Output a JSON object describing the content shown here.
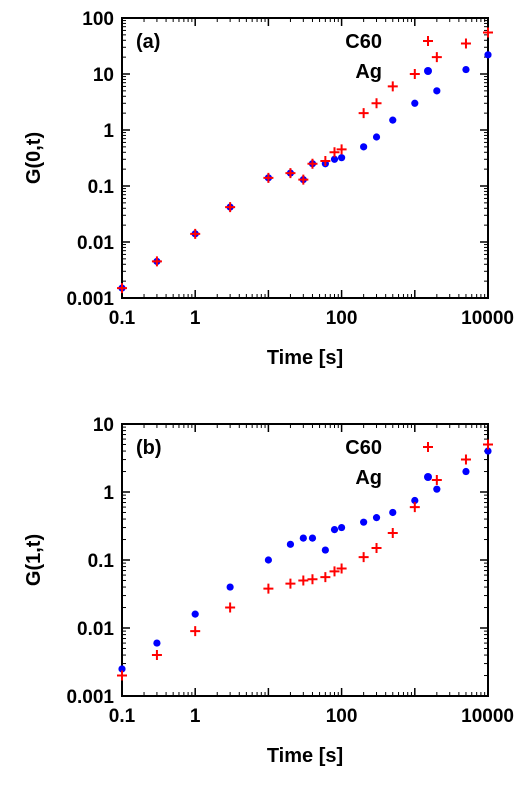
{
  "chart_data": [
    {
      "type": "scatter",
      "panel_label": "(a)",
      "xlabel": "Time [s]",
      "ylabel": "G(0,t)",
      "x_scale": "log",
      "y_scale": "log",
      "xlim": [
        0.1,
        10000
      ],
      "ylim": [
        0.001,
        100
      ],
      "x_ticks": [
        0.1,
        1,
        100,
        10000
      ],
      "x_tick_labels": [
        "0.1",
        "1",
        "100",
        "10000"
      ],
      "y_ticks": [
        0.001,
        0.01,
        0.1,
        1,
        10,
        100
      ],
      "y_tick_labels": [
        "0.001",
        "0.01",
        "0.1",
        "1",
        "10",
        "100"
      ],
      "legend_position": "top-right",
      "series": [
        {
          "name": "C60",
          "marker": "plus",
          "color": "#ff0000",
          "x": [
            0.1,
            0.3,
            1,
            3,
            10,
            20,
            30,
            40,
            60,
            80,
            100,
            200,
            300,
            500,
            1000,
            2000,
            5000,
            10000
          ],
          "y": [
            0.0015,
            0.0045,
            0.014,
            0.042,
            0.14,
            0.17,
            0.13,
            0.25,
            0.28,
            0.4,
            0.45,
            2,
            3,
            6,
            10,
            20,
            35,
            55
          ]
        },
        {
          "name": "Ag",
          "marker": "dot",
          "color": "#0000ff",
          "x": [
            0.1,
            0.3,
            1,
            3,
            10,
            20,
            30,
            40,
            60,
            80,
            100,
            200,
            300,
            500,
            1000,
            2000,
            5000,
            10000
          ],
          "y": [
            0.0015,
            0.0045,
            0.014,
            0.042,
            0.14,
            0.17,
            0.13,
            0.25,
            0.25,
            0.3,
            0.32,
            0.5,
            0.75,
            1.5,
            3,
            5,
            12,
            22
          ]
        }
      ]
    },
    {
      "type": "scatter",
      "panel_label": "(b)",
      "xlabel": "Time [s]",
      "ylabel": "G(1,t)",
      "x_scale": "log",
      "y_scale": "log",
      "xlim": [
        0.1,
        10000
      ],
      "ylim": [
        0.001,
        10
      ],
      "x_ticks": [
        0.1,
        1,
        100,
        10000
      ],
      "x_tick_labels": [
        "0.1",
        "1",
        "100",
        "10000"
      ],
      "y_ticks": [
        0.001,
        0.01,
        0.1,
        1,
        10
      ],
      "y_tick_labels": [
        "0.001",
        "0.01",
        "0.1",
        "1",
        "10"
      ],
      "legend_position": "top-right",
      "series": [
        {
          "name": "C60",
          "marker": "plus",
          "color": "#ff0000",
          "x": [
            0.1,
            0.3,
            1,
            3,
            10,
            20,
            30,
            40,
            60,
            80,
            100,
            200,
            300,
            500,
            1000,
            2000,
            5000,
            10000
          ],
          "y": [
            0.002,
            0.004,
            0.009,
            0.02,
            0.038,
            0.045,
            0.05,
            0.052,
            0.056,
            0.068,
            0.075,
            0.11,
            0.15,
            0.25,
            0.6,
            1.5,
            3,
            5
          ]
        },
        {
          "name": "Ag",
          "marker": "dot",
          "color": "#0000ff",
          "x": [
            0.1,
            0.3,
            1,
            3,
            10,
            20,
            30,
            40,
            60,
            80,
            100,
            200,
            300,
            500,
            1000,
            2000,
            5000,
            10000
          ],
          "y": [
            0.0025,
            0.006,
            0.016,
            0.04,
            0.1,
            0.17,
            0.21,
            0.21,
            0.14,
            0.28,
            0.3,
            0.36,
            0.42,
            0.5,
            0.75,
            1.1,
            2,
            4
          ]
        }
      ]
    }
  ]
}
